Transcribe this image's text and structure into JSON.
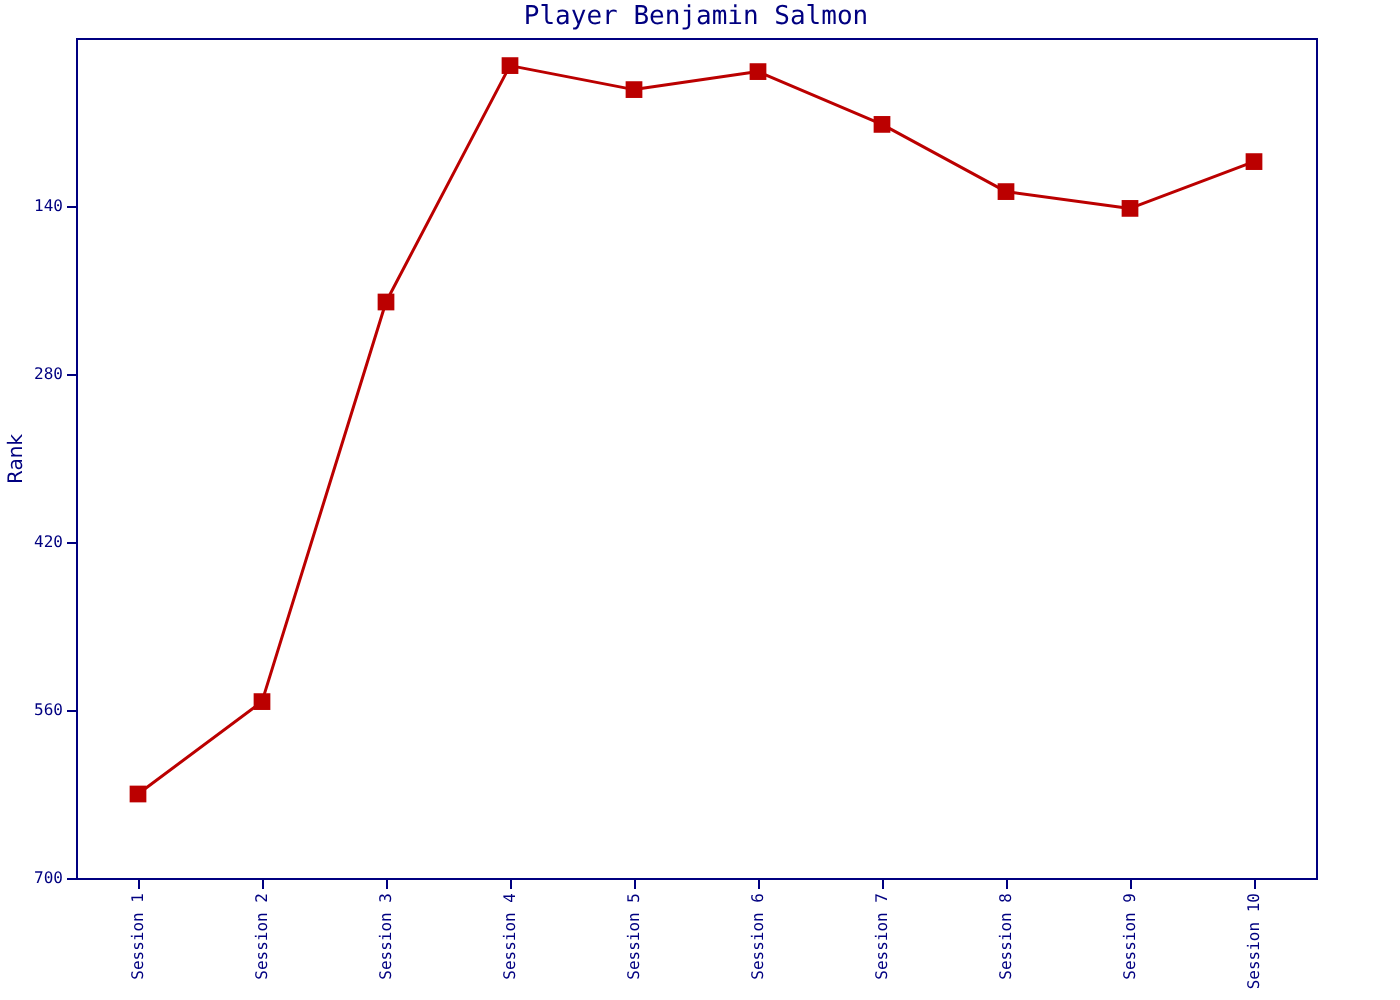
{
  "chart_data": {
    "type": "line",
    "title": "Player Benjamin Salmon",
    "ylabel": "Rank",
    "categories": [
      "Session 1",
      "Session 2",
      "Session 3",
      "Session 4",
      "Session 5",
      "Session 6",
      "Session 7",
      "Session 8",
      "Session 9",
      "Session 10"
    ],
    "series": [
      {
        "color": "#bb0000",
        "values": [
          630,
          553,
          220,
          23,
          43,
          28,
          72,
          128,
          142,
          103
        ]
      }
    ],
    "ylim": [
      700,
      0
    ],
    "yticks": [
      140,
      280,
      420,
      560,
      700
    ],
    "grid": false,
    "marker": "square",
    "line_style": "solid"
  }
}
